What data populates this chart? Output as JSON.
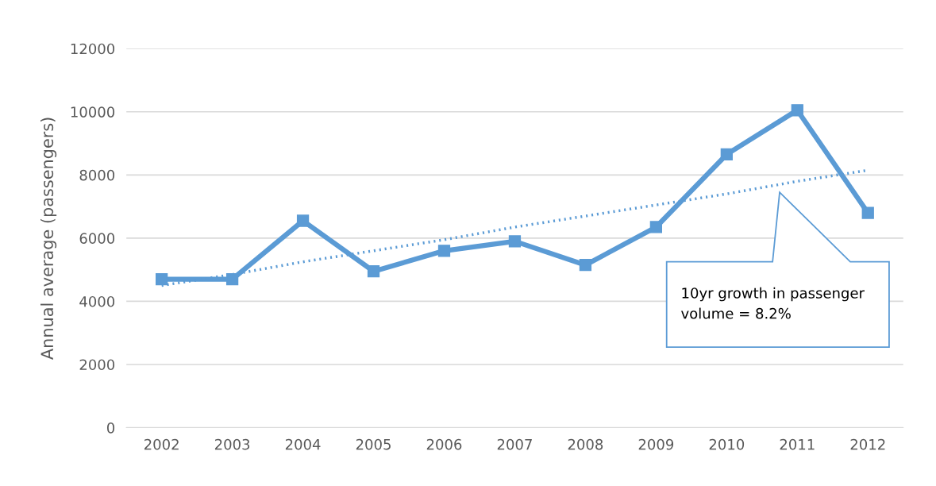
{
  "chart_data": {
    "type": "line",
    "ylabel": "Annual average (passengers)",
    "categories": [
      "2002",
      "2003",
      "2004",
      "2005",
      "2006",
      "2007",
      "2008",
      "2009",
      "2010",
      "2011",
      "2012"
    ],
    "series": [
      {
        "color": "#5b9bd5",
        "marker": "square",
        "line_style": "solid",
        "values": [
          4700,
          4700,
          6550,
          4950,
          5600,
          5900,
          5150,
          6350,
          8650,
          10050,
          6800
        ]
      },
      {
        "type": "line",
        "color": "#5b9bd5",
        "marker": "none",
        "line_style": "dotted",
        "values": [
          4500,
          4850,
          5250,
          5600,
          5950,
          6350,
          6700,
          7050,
          7400,
          7800,
          8150
        ]
      }
    ],
    "ylim": [
      0,
      12000
    ],
    "yticks": [
      0,
      2000,
      4000,
      6000,
      8000,
      10000,
      12000
    ],
    "grid": "y",
    "legend": false,
    "annotations": [
      "10yr growth in passenger\nvolume = 8.2%"
    ]
  }
}
